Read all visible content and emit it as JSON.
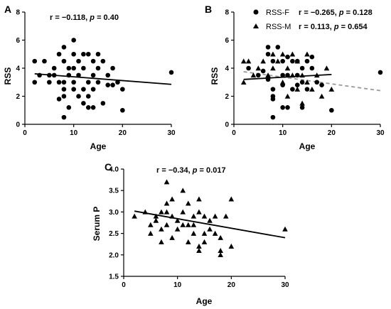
{
  "chart_data": [
    {
      "panel": "A",
      "type": "scatter",
      "xlabel": "Age",
      "ylabel": "RSS",
      "xlim": [
        0,
        30
      ],
      "ylim": [
        0,
        8
      ],
      "xticks": [
        "0",
        "10",
        "20",
        "30"
      ],
      "yticks": [
        "0",
        "2",
        "4",
        "6",
        "8"
      ],
      "annotation": {
        "r_text": "r = −0.118, ",
        "p_label": "p",
        "p_text": " = 0.40"
      },
      "fit": {
        "x": [
          2,
          30
        ],
        "y": [
          3.6,
          2.85
        ],
        "style": "solid",
        "color": "#000000"
      },
      "series": [
        {
          "marker": "circle",
          "color": "#000000",
          "points": [
            [
              2,
              4.5
            ],
            [
              2,
              3
            ],
            [
              3,
              3.5
            ],
            [
              4,
              4.5
            ],
            [
              5,
              3.5
            ],
            [
              5,
              3
            ],
            [
              6,
              4
            ],
            [
              6,
              3.5
            ],
            [
              7,
              5
            ],
            [
              7,
              3
            ],
            [
              7,
              1.8
            ],
            [
              8,
              5.5
            ],
            [
              8,
              4.5
            ],
            [
              8,
              3
            ],
            [
              8,
              2.5
            ],
            [
              8,
              2
            ],
            [
              8,
              0.5
            ],
            [
              9,
              4
            ],
            [
              9,
              3.5
            ],
            [
              9,
              1.2
            ],
            [
              10,
              6
            ],
            [
              10,
              5
            ],
            [
              10,
              4
            ],
            [
              10,
              3
            ],
            [
              10,
              2.5
            ],
            [
              11,
              4.5
            ],
            [
              11,
              3.5
            ],
            [
              11,
              2
            ],
            [
              12,
              5
            ],
            [
              12,
              4
            ],
            [
              12,
              2.5
            ],
            [
              12,
              1.5
            ],
            [
              13,
              5
            ],
            [
              13,
              3
            ],
            [
              13,
              2
            ],
            [
              13,
              1.2
            ],
            [
              14,
              4.5
            ],
            [
              14,
              3.5
            ],
            [
              14,
              2.5
            ],
            [
              14,
              1.2
            ],
            [
              15,
              5
            ],
            [
              15,
              4
            ],
            [
              15,
              3
            ],
            [
              16,
              4.5
            ],
            [
              16,
              1.5
            ],
            [
              17,
              3.5
            ],
            [
              17,
              2.8
            ],
            [
              18,
              4
            ],
            [
              18,
              2.8
            ],
            [
              19,
              3
            ],
            [
              20,
              2.5
            ],
            [
              20,
              1
            ],
            [
              30,
              3.7
            ]
          ]
        }
      ]
    },
    {
      "panel": "B",
      "type": "scatter",
      "xlabel": "Age",
      "ylabel": "RSS",
      "xlim": [
        0,
        30
      ],
      "ylim": [
        0,
        8
      ],
      "xticks": [
        "0",
        "10",
        "20",
        "30"
      ],
      "yticks": [
        "0",
        "2",
        "4",
        "6",
        "8"
      ],
      "legend": [
        {
          "name": "RSS-F",
          "marker": "circle",
          "r_text": "r = −0.265, ",
          "p_label": "p",
          "p_text": " = 0.128"
        },
        {
          "name": "RSS-M",
          "marker": "triangle",
          "r_text": "r = 0.113, ",
          "p_label": "p",
          "p_text": " = 0.654"
        }
      ],
      "fits": [
        {
          "series": "RSS-F",
          "x": [
            2,
            30
          ],
          "y": [
            3.75,
            2.4
          ],
          "style": "dashed",
          "color": "#999999"
        },
        {
          "series": "RSS-M",
          "x": [
            2,
            20
          ],
          "y": [
            3.2,
            3.55
          ],
          "style": "solid",
          "color": "#000000"
        }
      ],
      "series": [
        {
          "name": "RSS-F",
          "marker": "circle",
          "color": "#000000",
          "points": [
            [
              3,
              4
            ],
            [
              5,
              3.5
            ],
            [
              6,
              3.8
            ],
            [
              7,
              5.5
            ],
            [
              7,
              5
            ],
            [
              7,
              3.2
            ],
            [
              8,
              4.5
            ],
            [
              8,
              2.5
            ],
            [
              8,
              2
            ],
            [
              8,
              1.8
            ],
            [
              8,
              0.5
            ],
            [
              9,
              5.5
            ],
            [
              10,
              4.5
            ],
            [
              10,
              3.5
            ],
            [
              10,
              2.8
            ],
            [
              10,
              1.2
            ],
            [
              11,
              4.8
            ],
            [
              11,
              3.5
            ],
            [
              11,
              1.2
            ],
            [
              12,
              4.5
            ],
            [
              12,
              2.5
            ],
            [
              13,
              4.5
            ],
            [
              13,
              3.5
            ],
            [
              13,
              2.8
            ],
            [
              14,
              4
            ],
            [
              14,
              3
            ],
            [
              14,
              1.2
            ],
            [
              15,
              2.5
            ],
            [
              15,
              4.5
            ],
            [
              16,
              4
            ],
            [
              16,
              4.8
            ],
            [
              17,
              3
            ],
            [
              18,
              2.8
            ],
            [
              20,
              1
            ],
            [
              30,
              3.7
            ]
          ]
        },
        {
          "name": "RSS-M",
          "marker": "triangle",
          "color": "#000000",
          "points": [
            [
              2,
              4.5
            ],
            [
              2,
              3
            ],
            [
              3,
              4.5
            ],
            [
              4,
              3.5
            ],
            [
              5,
              4
            ],
            [
              6,
              4.5
            ],
            [
              7,
              3.5
            ],
            [
              8,
              5
            ],
            [
              8,
              4
            ],
            [
              9,
              4.5
            ],
            [
              10,
              5
            ],
            [
              10,
              3
            ],
            [
              11,
              4
            ],
            [
              11,
              2
            ],
            [
              12,
              5
            ],
            [
              12,
              3.5
            ],
            [
              13,
              4.5
            ],
            [
              13,
              2.5
            ],
            [
              14,
              3.5
            ],
            [
              14,
              1.5
            ],
            [
              15,
              5
            ],
            [
              15,
              3
            ],
            [
              16,
              2.5
            ],
            [
              17,
              3.5
            ],
            [
              18,
              2
            ],
            [
              19,
              4
            ],
            [
              20,
              2.5
            ]
          ]
        }
      ]
    },
    {
      "panel": "C",
      "type": "scatter",
      "xlabel": "Age",
      "ylabel": "Serum P",
      "xlim": [
        0,
        30
      ],
      "ylim": [
        1.5,
        4.0
      ],
      "xticks": [
        "0",
        "10",
        "20",
        "30"
      ],
      "yticks": [
        "1.5",
        "2.0",
        "2.5",
        "3.0",
        "3.5",
        "4.0"
      ],
      "annotation": {
        "r_text": "r = −0.34, ",
        "p_label": "p",
        "p_text": " = 0.017"
      },
      "fit": {
        "x": [
          2,
          30
        ],
        "y": [
          3.02,
          2.4
        ],
        "style": "solid",
        "color": "#000000"
      },
      "series": [
        {
          "marker": "triangle",
          "color": "#000000",
          "points": [
            [
              2,
              2.9
            ],
            [
              4,
              3.0
            ],
            [
              5,
              2.5
            ],
            [
              5,
              2.7
            ],
            [
              6,
              2.9
            ],
            [
              6,
              2.8
            ],
            [
              7,
              3.0
            ],
            [
              7,
              2.6
            ],
            [
              7,
              2.3
            ],
            [
              8,
              3.7
            ],
            [
              8,
              3.2
            ],
            [
              8,
              3.0
            ],
            [
              8,
              2.7
            ],
            [
              9,
              3.3
            ],
            [
              9,
              2.9
            ],
            [
              9,
              2.4
            ],
            [
              10,
              2.8
            ],
            [
              10,
              2.6
            ],
            [
              11,
              3.5
            ],
            [
              11,
              3.0
            ],
            [
              11,
              2.7
            ],
            [
              12,
              3.2
            ],
            [
              12,
              2.7
            ],
            [
              12,
              2.3
            ],
            [
              13,
              2.9
            ],
            [
              13,
              2.7
            ],
            [
              13,
              2.5
            ],
            [
              14,
              3.3
            ],
            [
              14,
              3.0
            ],
            [
              14,
              2.2
            ],
            [
              14,
              2.1
            ],
            [
              15,
              2.9
            ],
            [
              15,
              2.5
            ],
            [
              15,
              2.3
            ],
            [
              16,
              2.8
            ],
            [
              16,
              2.6
            ],
            [
              17,
              2.9
            ],
            [
              17,
              2.5
            ],
            [
              18,
              2.4
            ],
            [
              18,
              2.1
            ],
            [
              18,
              2.0
            ],
            [
              19,
              2.9
            ],
            [
              20,
              3.3
            ],
            [
              20,
              2.2
            ],
            [
              30,
              2.6
            ]
          ]
        }
      ]
    }
  ]
}
